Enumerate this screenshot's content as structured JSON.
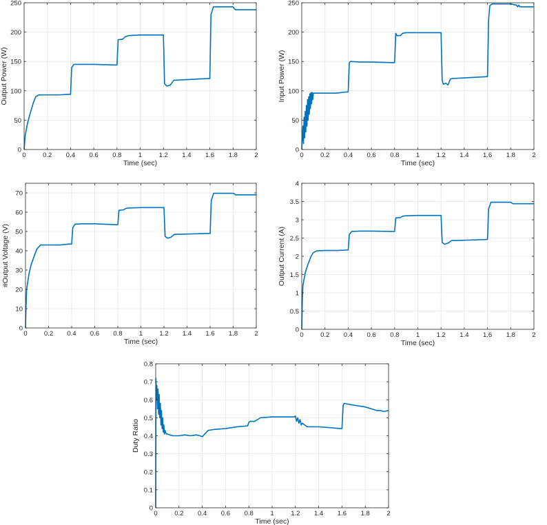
{
  "chart_data": [
    {
      "id": "output-power",
      "type": "line",
      "xlabel": "Time (sec)",
      "ylabel": "Output Power (W)",
      "xlim": [
        0,
        2
      ],
      "ylim": [
        0,
        250
      ],
      "xticks": [
        0,
        0.2,
        0.4,
        0.6,
        0.8,
        1,
        1.2,
        1.4,
        1.6,
        1.8,
        2
      ],
      "yticks": [
        0,
        50,
        100,
        150,
        200,
        250
      ],
      "grid": true,
      "color": "#0072bd",
      "series": [
        {
          "x": [
            0,
            0.01,
            0.03,
            0.05,
            0.08,
            0.1,
            0.13,
            0.2,
            0.3,
            0.38,
            0.4,
            0.41,
            0.43,
            0.5,
            0.6,
            0.79,
            0.8,
            0.81,
            0.85,
            0.87,
            0.9,
            1.0,
            1.19,
            1.2,
            1.21,
            1.23,
            1.26,
            1.29,
            1.4,
            1.59,
            1.6,
            1.61,
            1.63,
            1.7,
            1.8,
            1.81,
            1.82,
            1.84,
            1.9,
            2.0
          ],
          "y": [
            0,
            25,
            45,
            60,
            80,
            90,
            93,
            93,
            93,
            94,
            94,
            140,
            145,
            145,
            145,
            144,
            144,
            187,
            188,
            192,
            194,
            195,
            195,
            195,
            112,
            108,
            110,
            118,
            119,
            121,
            121,
            230,
            243,
            243,
            243,
            240,
            238,
            238,
            238,
            238
          ]
        }
      ]
    },
    {
      "id": "input-power",
      "type": "line",
      "xlabel": "Time (sec)",
      "ylabel": "Input Power (W)",
      "xlim": [
        0,
        2
      ],
      "ylim": [
        0,
        250
      ],
      "xticks": [
        0,
        0.2,
        0.4,
        0.6,
        0.8,
        1,
        1.2,
        1.4,
        1.6,
        1.8,
        2
      ],
      "yticks": [
        0,
        50,
        100,
        150,
        200,
        250
      ],
      "grid": true,
      "color": "#0072bd",
      "series": [
        {
          "x": [
            0,
            0.01,
            0.015,
            0.02,
            0.025,
            0.03,
            0.035,
            0.04,
            0.045,
            0.05,
            0.055,
            0.06,
            0.065,
            0.07,
            0.075,
            0.08,
            0.085,
            0.09,
            0.095,
            0.1,
            0.12,
            0.15,
            0.2,
            0.3,
            0.38,
            0.4,
            0.41,
            0.42,
            0.5,
            0.6,
            0.79,
            0.8,
            0.81,
            0.82,
            0.85,
            0.87,
            0.9,
            1.0,
            1.19,
            1.2,
            1.21,
            1.22,
            1.24,
            1.26,
            1.28,
            1.3,
            1.4,
            1.59,
            1.6,
            1.61,
            1.62,
            1.64,
            1.7,
            1.8,
            1.85,
            1.86,
            1.87,
            1.88,
            1.9,
            2.0
          ],
          "y": [
            0,
            40,
            10,
            55,
            20,
            65,
            30,
            75,
            40,
            85,
            50,
            90,
            60,
            95,
            70,
            97,
            78,
            97,
            85,
            96,
            96,
            96,
            96,
            96,
            98,
            98,
            148,
            150,
            149,
            149,
            148,
            148,
            198,
            194,
            194,
            198,
            199,
            199,
            199,
            199,
            118,
            111,
            113,
            110,
            120,
            121,
            122,
            124,
            124,
            222,
            245,
            248,
            248,
            248,
            246,
            243,
            246,
            243,
            243,
            243
          ]
        }
      ]
    },
    {
      "id": "output-voltage",
      "type": "line",
      "xlabel": "Time (sec)",
      "ylabel": "#Output Voltage (V)",
      "xlim": [
        0,
        2
      ],
      "ylim": [
        0,
        75
      ],
      "xticks": [
        0,
        0.2,
        0.4,
        0.6,
        0.8,
        1,
        1.2,
        1.4,
        1.6,
        1.8,
        2
      ],
      "yticks": [
        0,
        10,
        20,
        30,
        40,
        50,
        60,
        70
      ],
      "grid": true,
      "color": "#0072bd",
      "series": [
        {
          "x": [
            0,
            0.005,
            0.01,
            0.03,
            0.05,
            0.08,
            0.1,
            0.13,
            0.2,
            0.3,
            0.38,
            0.4,
            0.41,
            0.43,
            0.5,
            0.6,
            0.79,
            0.8,
            0.81,
            0.85,
            0.87,
            0.9,
            1.0,
            1.19,
            1.2,
            1.21,
            1.23,
            1.26,
            1.29,
            1.4,
            1.59,
            1.6,
            1.61,
            1.63,
            1.7,
            1.8,
            1.81,
            1.82,
            1.84,
            1.9,
            2.0
          ],
          "y": [
            0,
            12,
            20,
            28,
            33,
            38,
            41,
            43,
            43,
            43,
            43.5,
            43.5,
            52,
            53.8,
            54,
            54,
            53.5,
            53.5,
            61,
            61.2,
            62,
            62.2,
            62.4,
            62.4,
            62.4,
            47.5,
            46.5,
            47,
            48.5,
            48.7,
            49,
            49,
            66,
            69.8,
            69.8,
            69.8,
            69.5,
            69,
            69,
            69,
            69
          ]
        }
      ]
    },
    {
      "id": "output-current",
      "type": "line",
      "xlabel": "Time (sec)",
      "ylabel": "Output Current (A)",
      "xlim": [
        0,
        2
      ],
      "ylim": [
        0,
        4
      ],
      "xticks": [
        0,
        0.2,
        0.4,
        0.6,
        0.8,
        1,
        1.2,
        1.4,
        1.6,
        1.8,
        2
      ],
      "yticks": [
        0,
        0.5,
        1,
        1.5,
        2,
        2.5,
        3,
        3.5,
        4
      ],
      "grid": true,
      "color": "#0072bd",
      "series": [
        {
          "x": [
            0,
            0.005,
            0.01,
            0.03,
            0.05,
            0.08,
            0.1,
            0.13,
            0.2,
            0.3,
            0.38,
            0.4,
            0.41,
            0.43,
            0.5,
            0.6,
            0.79,
            0.8,
            0.81,
            0.85,
            0.87,
            0.9,
            1.0,
            1.19,
            1.2,
            1.21,
            1.23,
            1.26,
            1.29,
            1.4,
            1.59,
            1.6,
            1.61,
            1.63,
            1.7,
            1.8,
            1.81,
            1.82,
            1.84,
            1.9,
            2.0
          ],
          "y": [
            0,
            0.8,
            1.2,
            1.55,
            1.75,
            2.0,
            2.1,
            2.15,
            2.16,
            2.16,
            2.17,
            2.17,
            2.6,
            2.68,
            2.69,
            2.69,
            2.68,
            2.68,
            3.05,
            3.06,
            3.1,
            3.11,
            3.12,
            3.12,
            3.12,
            2.38,
            2.33,
            2.36,
            2.43,
            2.44,
            2.46,
            2.46,
            3.3,
            3.48,
            3.48,
            3.48,
            3.46,
            3.44,
            3.44,
            3.44,
            3.44
          ]
        }
      ]
    },
    {
      "id": "duty-ratio",
      "type": "line",
      "xlabel": "Time (sec)",
      "ylabel": "Duty Ratio",
      "xlim": [
        0,
        2
      ],
      "ylim": [
        0,
        0.8
      ],
      "xticks": [
        0,
        0.2,
        0.4,
        0.6,
        0.8,
        1,
        1.2,
        1.4,
        1.6,
        1.8,
        2
      ],
      "yticks": [
        0,
        0.1,
        0.2,
        0.3,
        0.4,
        0.5,
        0.6,
        0.7,
        0.8
      ],
      "grid": true,
      "color": "#0072bd",
      "series": [
        {
          "x": [
            0,
            0.002,
            0.005,
            0.01,
            0.015,
            0.02,
            0.025,
            0.03,
            0.035,
            0.04,
            0.045,
            0.05,
            0.055,
            0.06,
            0.065,
            0.07,
            0.075,
            0.08,
            0.09,
            0.1,
            0.12,
            0.15,
            0.2,
            0.25,
            0.3,
            0.35,
            0.38,
            0.4,
            0.45,
            0.5,
            0.6,
            0.7,
            0.79,
            0.8,
            0.81,
            0.85,
            0.9,
            1.0,
            1.1,
            1.19,
            1.2,
            1.21,
            1.22,
            1.23,
            1.24,
            1.25,
            1.26,
            1.3,
            1.4,
            1.5,
            1.59,
            1.6,
            1.61,
            1.62,
            1.7,
            1.8,
            1.9,
            1.93,
            1.96,
            2.0
          ],
          "y": [
            0,
            0.72,
            0.6,
            0.68,
            0.55,
            0.66,
            0.52,
            0.63,
            0.5,
            0.58,
            0.46,
            0.54,
            0.44,
            0.5,
            0.42,
            0.46,
            0.41,
            0.43,
            0.41,
            0.41,
            0.405,
            0.4,
            0.4,
            0.405,
            0.4,
            0.405,
            0.4,
            0.395,
            0.43,
            0.435,
            0.44,
            0.45,
            0.455,
            0.475,
            0.48,
            0.48,
            0.5,
            0.505,
            0.505,
            0.505,
            0.51,
            0.48,
            0.5,
            0.47,
            0.49,
            0.46,
            0.47,
            0.45,
            0.45,
            0.445,
            0.44,
            0.44,
            0.57,
            0.58,
            0.57,
            0.56,
            0.54,
            0.54,
            0.535,
            0.54
          ]
        }
      ]
    }
  ]
}
